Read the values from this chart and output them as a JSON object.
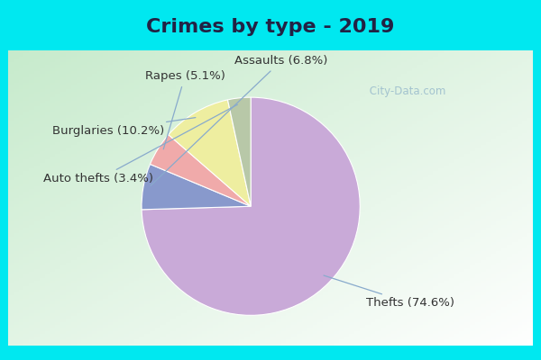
{
  "title": "Crimes by type - 2019",
  "slices": [
    {
      "label": "Thefts",
      "pct": 74.6,
      "color": "#c9aad8"
    },
    {
      "label": "Assaults",
      "pct": 6.8,
      "color": "#8899cc"
    },
    {
      "label": "Rapes",
      "pct": 5.1,
      "color": "#f0aaaa"
    },
    {
      "label": "Burglaries",
      "pct": 10.2,
      "color": "#eeeea0"
    },
    {
      "label": "Auto thefts",
      "pct": 3.4,
      "color": "#b8c8a8"
    }
  ],
  "title_fontsize": 16,
  "label_fontsize": 9.5,
  "bg_color_cyan": "#00e8f0",
  "bg_color_inner_tl": "#c8e8cc",
  "bg_color_inner_br": "#f0f0f8",
  "watermark": " City-Data.com"
}
